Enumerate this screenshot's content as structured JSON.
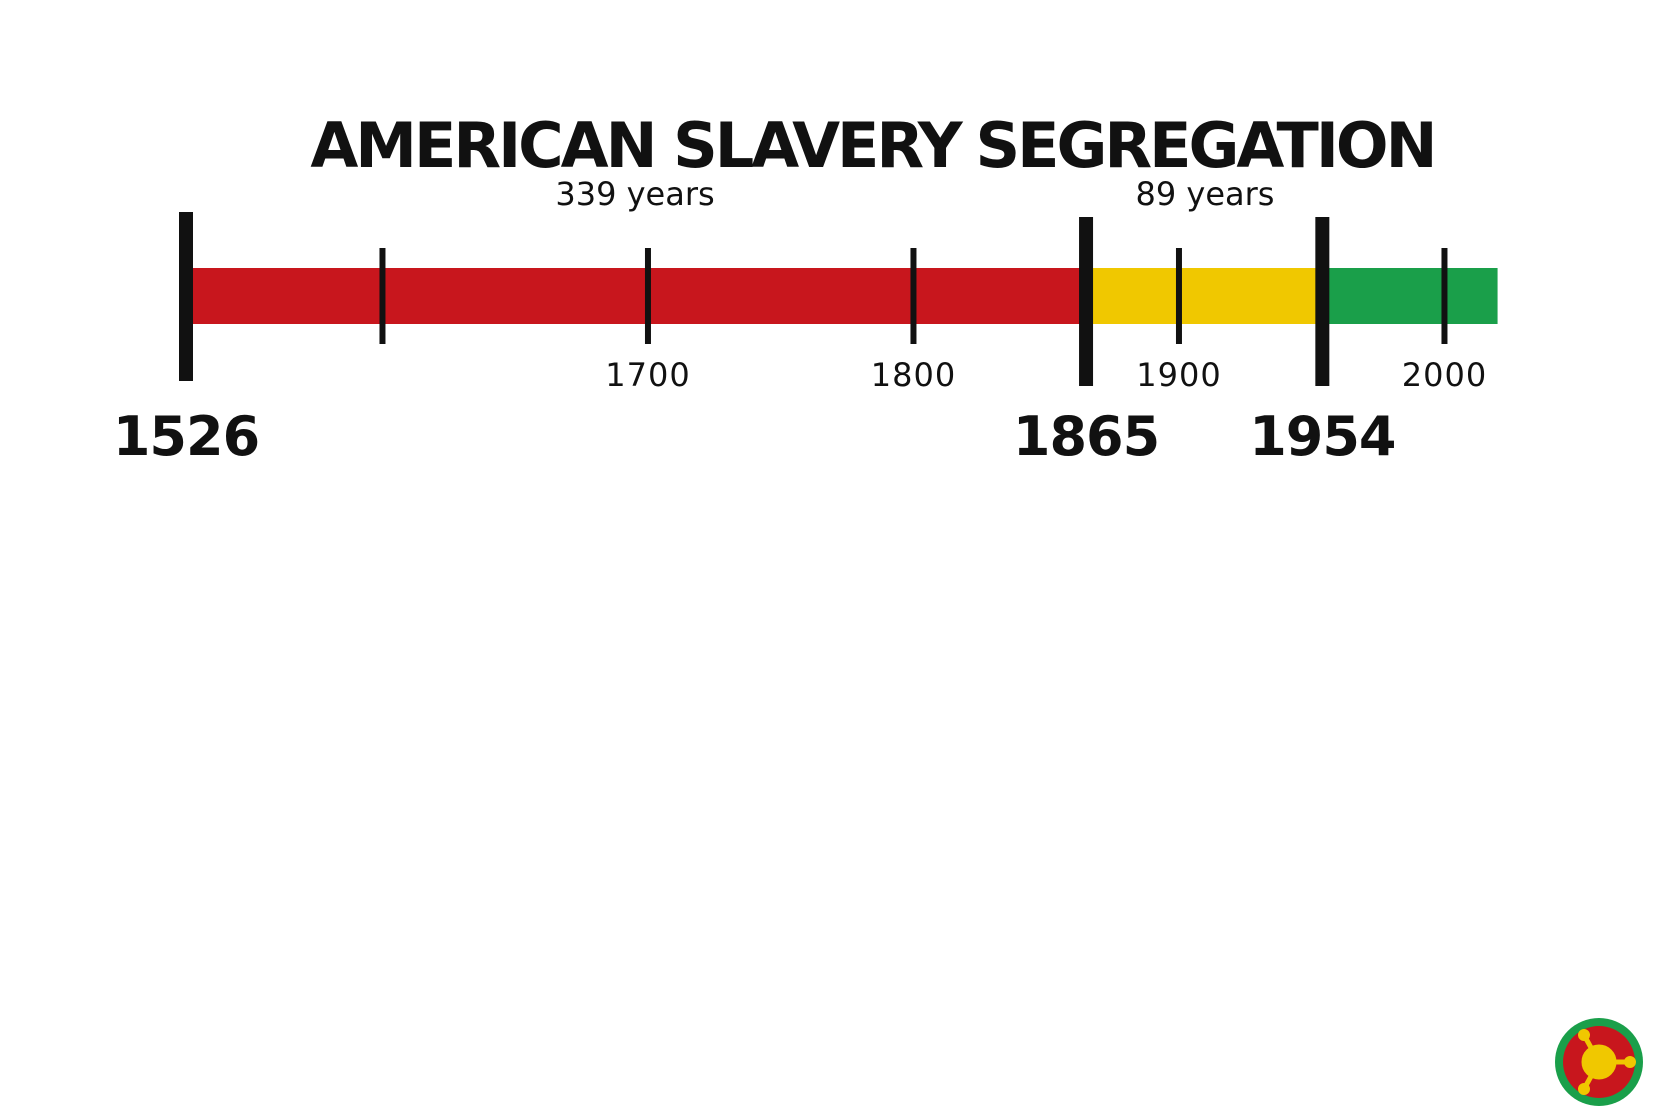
{
  "timeline": {
    "start_year": 1526,
    "end_year": 2020,
    "eras": [
      {
        "title": "AMERICAN SLAVERY",
        "duration": "339 years",
        "from": 1526,
        "to": 1865,
        "color": "#c8161d"
      },
      {
        "title": "SEGREGATION",
        "duration": "89 years",
        "from": 1865,
        "to": 1954,
        "color": "#f0c800"
      },
      {
        "title": "",
        "duration": "",
        "from": 1954,
        "to": 2020,
        "color": "#1a9f4a"
      }
    ],
    "century_ticks": [
      {
        "year": 1600,
        "label": ""
      },
      {
        "year": 1700,
        "label": "1700"
      },
      {
        "year": 1800,
        "label": "1800"
      },
      {
        "year": 1900,
        "label": "1900"
      },
      {
        "year": 2000,
        "label": "2000"
      }
    ],
    "milestones": [
      {
        "year": 1526,
        "label": "1526"
      },
      {
        "year": 1865,
        "label": "1865"
      },
      {
        "year": 1954,
        "label": "1954"
      }
    ]
  },
  "logo": {
    "icon": "pan-african-emblem-icon",
    "ring_color": "#1a9f4a",
    "center_color": "#c8161d",
    "symbol_color": "#f0c800"
  }
}
